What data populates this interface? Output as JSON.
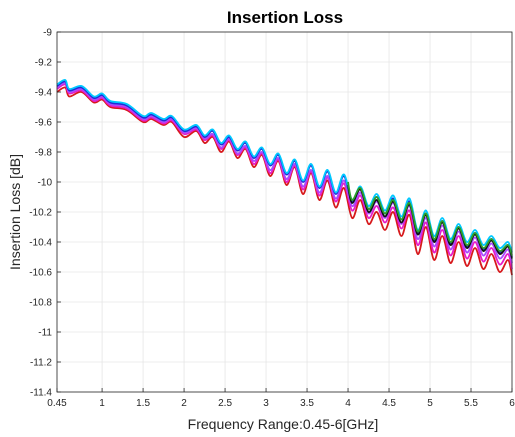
{
  "chart_data": {
    "type": "line",
    "title": "Insertion Loss",
    "xlabel": "Frequency Range:0.45-6[GHz]",
    "ylabel": "Insertion Loss [dB]",
    "xlim": [
      0.45,
      6
    ],
    "ylim": [
      -11.4,
      -9
    ],
    "x_ticks": [
      0.45,
      1,
      1.5,
      2,
      2.5,
      3,
      3.5,
      4,
      4.5,
      5,
      5.5,
      6
    ],
    "x_tick_labels": [
      "0.45",
      "1",
      "1.5",
      "2",
      "2.5",
      "3",
      "3.5",
      "4",
      "4.5",
      "5",
      "5.5",
      "6"
    ],
    "y_ticks": [
      -9,
      -9.2,
      -9.4,
      -9.6,
      -9.8,
      -10,
      -10.2,
      -10.4,
      -10.6,
      -10.8,
      -11,
      -11.2,
      -11.4
    ],
    "y_tick_labels": [
      "-9",
      "-9.2",
      "-9.4",
      "-9.6",
      "-9.8",
      "-10",
      "-10.2",
      "-10.4",
      "-10.6",
      "-10.8",
      "-11",
      "-11.2",
      "-11.4"
    ],
    "grid": true,
    "legend": "none",
    "series_colors": [
      "#d7191c",
      "#e61cc8",
      "#a64dff",
      "#1f2bd6",
      "#00c8ff",
      "#111111",
      "#2ca02c"
    ],
    "series": [
      {
        "color": "#d7191c",
        "x": [
          0.45,
          0.55,
          0.6,
          0.75,
          0.9,
          1.0,
          1.1,
          1.3,
          1.5,
          1.6,
          1.75,
          1.85,
          2.0,
          2.15,
          2.25,
          2.35,
          2.45,
          2.55,
          2.65,
          2.75,
          2.85,
          2.95,
          3.05,
          3.15,
          3.25,
          3.35,
          3.45,
          3.55,
          3.65,
          3.75,
          3.85,
          3.95,
          4.05,
          4.15,
          4.25,
          4.35,
          4.45,
          4.55,
          4.65,
          4.75,
          4.85,
          4.95,
          5.05,
          5.15,
          5.25,
          5.35,
          5.45,
          5.55,
          5.65,
          5.75,
          5.85,
          5.95,
          6.0
        ],
        "y": [
          -9.4,
          -9.37,
          -9.43,
          -9.4,
          -9.47,
          -9.45,
          -9.5,
          -9.52,
          -9.6,
          -9.58,
          -9.62,
          -9.6,
          -9.7,
          -9.66,
          -9.74,
          -9.7,
          -9.8,
          -9.73,
          -9.84,
          -9.78,
          -9.9,
          -9.82,
          -9.96,
          -9.86,
          -10.02,
          -9.9,
          -10.08,
          -9.94,
          -10.12,
          -9.99,
          -10.17,
          -10.04,
          -10.24,
          -10.12,
          -10.28,
          -10.2,
          -10.32,
          -10.2,
          -10.36,
          -10.22,
          -10.48,
          -10.3,
          -10.52,
          -10.36,
          -10.54,
          -10.4,
          -10.56,
          -10.44,
          -10.58,
          -10.48,
          -10.6,
          -10.52,
          -10.62
        ]
      },
      {
        "color": "#e61cc8",
        "x": [
          0.45,
          0.55,
          0.6,
          0.75,
          0.9,
          1.0,
          1.1,
          1.3,
          1.5,
          1.6,
          1.75,
          1.85,
          2.0,
          2.15,
          2.25,
          2.35,
          2.45,
          2.55,
          2.65,
          2.75,
          2.85,
          2.95,
          3.05,
          3.15,
          3.25,
          3.35,
          3.45,
          3.55,
          3.65,
          3.75,
          3.85,
          3.95,
          4.05,
          4.15,
          4.25,
          4.35,
          4.45,
          4.55,
          4.65,
          4.75,
          4.85,
          4.95,
          5.05,
          5.15,
          5.25,
          5.35,
          5.45,
          5.55,
          5.65,
          5.75,
          5.85,
          5.95,
          6.0
        ],
        "y": [
          -9.38,
          -9.35,
          -9.41,
          -9.39,
          -9.46,
          -9.44,
          -9.49,
          -9.51,
          -9.59,
          -9.57,
          -9.61,
          -9.59,
          -9.68,
          -9.65,
          -9.72,
          -9.69,
          -9.78,
          -9.72,
          -9.82,
          -9.77,
          -9.88,
          -9.81,
          -9.94,
          -9.85,
          -10.0,
          -9.89,
          -10.05,
          -9.93,
          -10.09,
          -9.97,
          -10.13,
          -10.01,
          -10.19,
          -10.09,
          -10.24,
          -10.16,
          -10.27,
          -10.17,
          -10.31,
          -10.19,
          -10.42,
          -10.27,
          -10.47,
          -10.32,
          -10.49,
          -10.36,
          -10.51,
          -10.4,
          -10.53,
          -10.44,
          -10.55,
          -10.48,
          -10.58
        ]
      },
      {
        "color": "#a64dff",
        "x": [
          0.45,
          0.55,
          0.6,
          0.75,
          0.9,
          1.0,
          1.1,
          1.3,
          1.5,
          1.6,
          1.75,
          1.85,
          2.0,
          2.15,
          2.25,
          2.35,
          2.45,
          2.55,
          2.65,
          2.75,
          2.85,
          2.95,
          3.05,
          3.15,
          3.25,
          3.35,
          3.45,
          3.55,
          3.65,
          3.75,
          3.85,
          3.95,
          4.05,
          4.15,
          4.25,
          4.35,
          4.45,
          4.55,
          4.65,
          4.75,
          4.85,
          4.95,
          5.05,
          5.15,
          5.25,
          5.35,
          5.45,
          5.55,
          5.65,
          5.75,
          5.85,
          5.95,
          6.0
        ],
        "y": [
          -9.37,
          -9.34,
          -9.4,
          -9.38,
          -9.45,
          -9.43,
          -9.48,
          -9.5,
          -9.58,
          -9.56,
          -9.6,
          -9.58,
          -9.67,
          -9.64,
          -9.71,
          -9.68,
          -9.77,
          -9.71,
          -9.81,
          -9.76,
          -9.86,
          -9.8,
          -9.92,
          -9.84,
          -9.98,
          -9.88,
          -10.03,
          -9.92,
          -10.07,
          -9.96,
          -10.11,
          -9.99,
          -10.16,
          -10.07,
          -10.21,
          -10.13,
          -10.24,
          -10.14,
          -10.28,
          -10.16,
          -10.38,
          -10.24,
          -10.43,
          -10.29,
          -10.45,
          -10.33,
          -10.47,
          -10.37,
          -10.49,
          -10.41,
          -10.51,
          -10.45,
          -10.54
        ]
      },
      {
        "color": "#1f2bd6",
        "x": [
          0.45,
          0.55,
          0.6,
          0.75,
          0.9,
          1.0,
          1.1,
          1.3,
          1.5,
          1.6,
          1.75,
          1.85,
          2.0,
          2.15,
          2.25,
          2.35,
          2.45,
          2.55,
          2.65,
          2.75,
          2.85,
          2.95,
          3.05,
          3.15,
          3.25,
          3.35,
          3.45,
          3.55,
          3.65,
          3.75,
          3.85,
          3.95,
          4.05,
          4.15,
          4.25,
          4.35,
          4.45,
          4.55,
          4.65,
          4.75,
          4.85,
          4.95,
          5.05,
          5.15,
          5.25,
          5.35,
          5.45,
          5.55,
          5.65,
          5.75,
          5.85,
          5.95,
          6.0
        ],
        "y": [
          -9.36,
          -9.33,
          -9.39,
          -9.37,
          -9.44,
          -9.42,
          -9.47,
          -9.49,
          -9.57,
          -9.55,
          -9.59,
          -9.57,
          -9.66,
          -9.63,
          -9.7,
          -9.66,
          -9.75,
          -9.7,
          -9.79,
          -9.74,
          -9.84,
          -9.78,
          -9.89,
          -9.82,
          -9.95,
          -9.86,
          -10.0,
          -9.89,
          -10.04,
          -9.93,
          -10.08,
          -9.96,
          -10.13,
          -10.04,
          -10.18,
          -10.1,
          -10.21,
          -10.11,
          -10.25,
          -10.13,
          -10.34,
          -10.21,
          -10.39,
          -10.26,
          -10.41,
          -10.3,
          -10.43,
          -10.34,
          -10.45,
          -10.38,
          -10.47,
          -10.42,
          -10.5
        ]
      },
      {
        "color": "#00c8ff",
        "x": [
          0.45,
          0.55,
          0.6,
          0.75,
          0.9,
          1.0,
          1.1,
          1.3,
          1.5,
          1.6,
          1.75,
          1.85,
          2.0,
          2.15,
          2.25,
          2.35,
          2.45,
          2.55,
          2.65,
          2.75,
          2.85,
          2.95,
          3.05,
          3.15,
          3.25,
          3.35,
          3.45,
          3.55,
          3.65,
          3.75,
          3.85,
          3.95,
          4.05,
          4.15,
          4.25,
          4.35,
          4.45,
          4.55,
          4.65,
          4.75,
          4.85,
          4.95,
          5.05,
          5.15,
          5.25,
          5.35,
          5.45,
          5.55,
          5.65,
          5.75,
          5.85,
          5.95,
          6.0
        ],
        "y": [
          -9.35,
          -9.32,
          -9.38,
          -9.36,
          -9.43,
          -9.41,
          -9.46,
          -9.48,
          -9.56,
          -9.54,
          -9.58,
          -9.56,
          -9.65,
          -9.62,
          -9.69,
          -9.65,
          -9.74,
          -9.69,
          -9.78,
          -9.73,
          -9.83,
          -9.77,
          -9.88,
          -9.81,
          -9.94,
          -9.85,
          -9.99,
          -9.88,
          -10.03,
          -9.92,
          -10.07,
          -9.95,
          -10.12,
          -10.03,
          -10.16,
          -10.08,
          -10.19,
          -10.09,
          -10.23,
          -10.11,
          -10.32,
          -10.19,
          -10.36,
          -10.24,
          -10.38,
          -10.28,
          -10.4,
          -10.32,
          -10.42,
          -10.36,
          -10.44,
          -10.4,
          -10.47
        ]
      },
      {
        "color": "#111111",
        "x": [
          4.0,
          4.05,
          4.15,
          4.25,
          4.35,
          4.45,
          4.55,
          4.65,
          4.75,
          4.85,
          4.95,
          5.05,
          5.15,
          5.25,
          5.35,
          5.45,
          5.55,
          5.65,
          5.75,
          5.85,
          5.95,
          6.0
        ],
        "y": [
          -10.02,
          -10.14,
          -10.05,
          -10.2,
          -10.12,
          -10.23,
          -10.13,
          -10.27,
          -10.15,
          -10.35,
          -10.22,
          -10.4,
          -10.27,
          -10.42,
          -10.31,
          -10.44,
          -10.35,
          -10.46,
          -10.39,
          -10.48,
          -10.43,
          -10.51
        ]
      },
      {
        "color": "#2ca02c",
        "x": [
          4.0,
          4.05,
          4.15,
          4.25,
          4.35,
          4.45,
          4.55,
          4.65,
          4.75,
          4.85,
          4.95,
          5.05,
          5.15,
          5.25,
          5.35,
          5.45,
          5.55,
          5.65,
          5.75,
          5.85,
          5.95,
          6.0
        ],
        "y": [
          -10.0,
          -10.12,
          -10.04,
          -10.18,
          -10.1,
          -10.21,
          -10.12,
          -10.25,
          -10.14,
          -10.33,
          -10.21,
          -10.38,
          -10.26,
          -10.4,
          -10.3,
          -10.42,
          -10.34,
          -10.44,
          -10.38,
          -10.46,
          -10.42,
          -10.49
        ]
      }
    ]
  }
}
